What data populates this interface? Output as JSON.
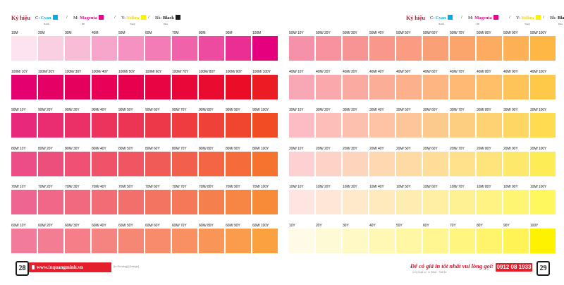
{
  "legend": {
    "title": "Ký hiệu",
    "cyan": {
      "prefix": "C:",
      "name": "Cyan",
      "sub": "Xanh",
      "color": "#00aeef"
    },
    "magenta": {
      "prefix": "M:",
      "name": "Magenta",
      "sub": "Đỏ",
      "color": "#ec008c"
    },
    "yellow": {
      "prefix": "Y:",
      "name": "Yellow",
      "sub": "Vàng",
      "color": "#fff200"
    },
    "black": {
      "prefix": "Bk:",
      "name": "Black",
      "sub": "Đen",
      "color": "#1a1a1a"
    },
    "separator": "/"
  },
  "left_page": {
    "page_number": "28",
    "website": "www.inquangminh.vn",
    "tagline": "[In Printing] [Design]",
    "rows": [
      {
        "labels": [
          "10M",
          "20M",
          "30M",
          "40M",
          "50M",
          "60M",
          "70M",
          "80M",
          "90M",
          "100M"
        ],
        "colors": [
          "#fde3ef",
          "#fbcfe2",
          "#f9bcd7",
          "#f7a6cb",
          "#f692c1",
          "#f47cb6",
          "#f063aa",
          "#ec4ba0",
          "#e92e94",
          "#e5007d"
        ]
      },
      {
        "labels": [
          "100M/ 10Y",
          "100M/ 20Y",
          "100M/ 30Y",
          "100M/ 40Y",
          "100M/ 50Y",
          "100M/ 60Y",
          "100M/ 70Y",
          "100M/ 80Y",
          "100M/ 90Y",
          "100M/ 100Y"
        ],
        "colors": [
          "#e4006f",
          "#e50065",
          "#e6005d",
          "#e70055",
          "#e7004d",
          "#e80343",
          "#e9073a",
          "#ea0b31",
          "#eb0d27",
          "#ec1c24"
        ]
      },
      {
        "labels": [
          "90M/ 10Y",
          "90M/ 20Y",
          "90M/ 30Y",
          "90M/ 40Y",
          "90M/ 50Y",
          "90M/ 60Y",
          "90M/ 70Y",
          "90M/ 80Y",
          "90M/ 90Y",
          "90M/ 100Y"
        ],
        "colors": [
          "#e8287a",
          "#e92d70",
          "#ea3066",
          "#eb335d",
          "#ec3554",
          "#ed384a",
          "#ee3c41",
          "#ef4138",
          "#f0462e",
          "#f14c24"
        ]
      },
      {
        "labels": [
          "80M/ 10Y",
          "80M/ 20Y",
          "80M/ 30Y",
          "80M/ 40Y",
          "80M/ 50Y",
          "80M/ 60Y",
          "80M/ 70Y",
          "80M/ 80Y",
          "80M/ 90Y",
          "80M/ 100Y"
        ],
        "colors": [
          "#ec4d86",
          "#ed4f7c",
          "#ee5173",
          "#ef536a",
          "#f05661",
          "#f15b57",
          "#f2604d",
          "#f46544",
          "#f56b3a",
          "#f6722f"
        ]
      },
      {
        "labels": [
          "70M/ 10Y",
          "70M/ 20Y",
          "70M/ 30Y",
          "70M/ 40Y",
          "70M/ 50Y",
          "70M/ 60Y",
          "70M/ 70Y",
          "70M/ 80Y",
          "70M/ 90Y",
          "70M/ 100Y"
        ],
        "colors": [
          "#ef6592",
          "#f06788",
          "#f1697f",
          "#f26c76",
          "#f36f6c",
          "#f47462",
          "#f57958",
          "#f67f4e",
          "#f78544",
          "#f88b38"
        ]
      },
      {
        "labels": [
          "60M/ 10Y",
          "60M/ 20Y",
          "60M/ 30Y",
          "60M/ 40Y",
          "60M/ 50Y",
          "60M/ 60Y",
          "60M/ 70Y",
          "60M/ 80Y",
          "60M/ 90Y",
          "60M/ 100Y"
        ],
        "colors": [
          "#f27b9c",
          "#f37d92",
          "#f47f88",
          "#f5837f",
          "#f68775",
          "#f78b6b",
          "#f89061",
          "#f99657",
          "#fa9c4c",
          "#fba13f"
        ]
      }
    ]
  },
  "right_page": {
    "page_number": "29",
    "callout": "Để có giá in tốt nhất vui lòng gọi:",
    "phone": "0912 08 1933",
    "notes": "In Kỹ thuật số · In Offset · Thiết kế",
    "rows": [
      {
        "labels": [
          "50M/ 10Y",
          "50M/ 20Y",
          "50M/ 30Y",
          "50M/ 40Y",
          "50M/ 50Y",
          "50M/ 60Y",
          "50M/ 70Y",
          "50M/ 80Y",
          "50M/ 90Y",
          "50M/ 100Y"
        ],
        "colors": [
          "#f591a8",
          "#f6939e",
          "#f79595",
          "#f8988b",
          "#f99c81",
          "#faa077",
          "#fba56c",
          "#fcab61",
          "#fdb154",
          "#feb745"
        ]
      },
      {
        "labels": [
          "40M/ 10Y",
          "40M/ 20Y",
          "40M/ 30Y",
          "40M/ 40Y",
          "40M/ 50Y",
          "40M/ 60Y",
          "40M/ 70Y",
          "40M/ 80Y",
          "40M/ 90Y",
          "40M/ 100Y"
        ],
        "colors": [
          "#f8a7b5",
          "#f9a9ab",
          "#faaba1",
          "#fbae97",
          "#fcb18c",
          "#fdb581",
          "#feba75",
          "#febf68",
          "#fec45a",
          "#fec948"
        ]
      },
      {
        "labels": [
          "30M/ 10Y",
          "30M/ 20Y",
          "30M/ 30Y",
          "30M/ 40Y",
          "30M/ 50Y",
          "30M/ 60Y",
          "30M/ 70Y",
          "30M/ 80Y",
          "30M/ 90Y",
          "30M/ 100Y"
        ],
        "colors": [
          "#fbbcc3",
          "#fbbeb9",
          "#fcc0af",
          "#fcc3a4",
          "#fdc699",
          "#fdca8d",
          "#fece80",
          "#fed272",
          "#fed663",
          "#fedb50"
        ]
      },
      {
        "labels": [
          "20M/ 10Y",
          "20M/ 20Y",
          "20M/ 30Y",
          "20M/ 40Y",
          "20M/ 50Y",
          "20M/ 60Y",
          "20M/ 70Y",
          "20M/ 80Y",
          "20M/ 90Y",
          "20M/ 100Y"
        ],
        "colors": [
          "#fdd1d2",
          "#fdd3c8",
          "#fdd5bd",
          "#fdd8b1",
          "#fedba5",
          "#fede98",
          "#fee18a",
          "#fee47b",
          "#fee86b",
          "#feec56"
        ]
      },
      {
        "labels": [
          "10M/ 10Y",
          "10M/ 20Y",
          "10M/ 30Y",
          "10M/ 40Y",
          "10M/ 50Y",
          "10M/ 60Y",
          "10M/ 70Y",
          "10M/ 80Y",
          "10M/ 90Y",
          "10M/ 100Y"
        ],
        "colors": [
          "#fee5e1",
          "#fee7d6",
          "#fee9ca",
          "#feebbd",
          "#feedb0",
          "#feefa2",
          "#fef193",
          "#fef383",
          "#fef573",
          "#fef75d"
        ]
      },
      {
        "labels": [
          "10Y",
          "20Y",
          "30Y",
          "40Y",
          "50Y",
          "60Y",
          "70Y",
          "80Y",
          "90Y",
          "100Y"
        ],
        "colors": [
          "#fffbe6",
          "#fffad6",
          "#fff9c5",
          "#fff8b4",
          "#fff7a3",
          "#fff691",
          "#fff57f",
          "#fff46b",
          "#fff356",
          "#fff200"
        ]
      }
    ]
  }
}
